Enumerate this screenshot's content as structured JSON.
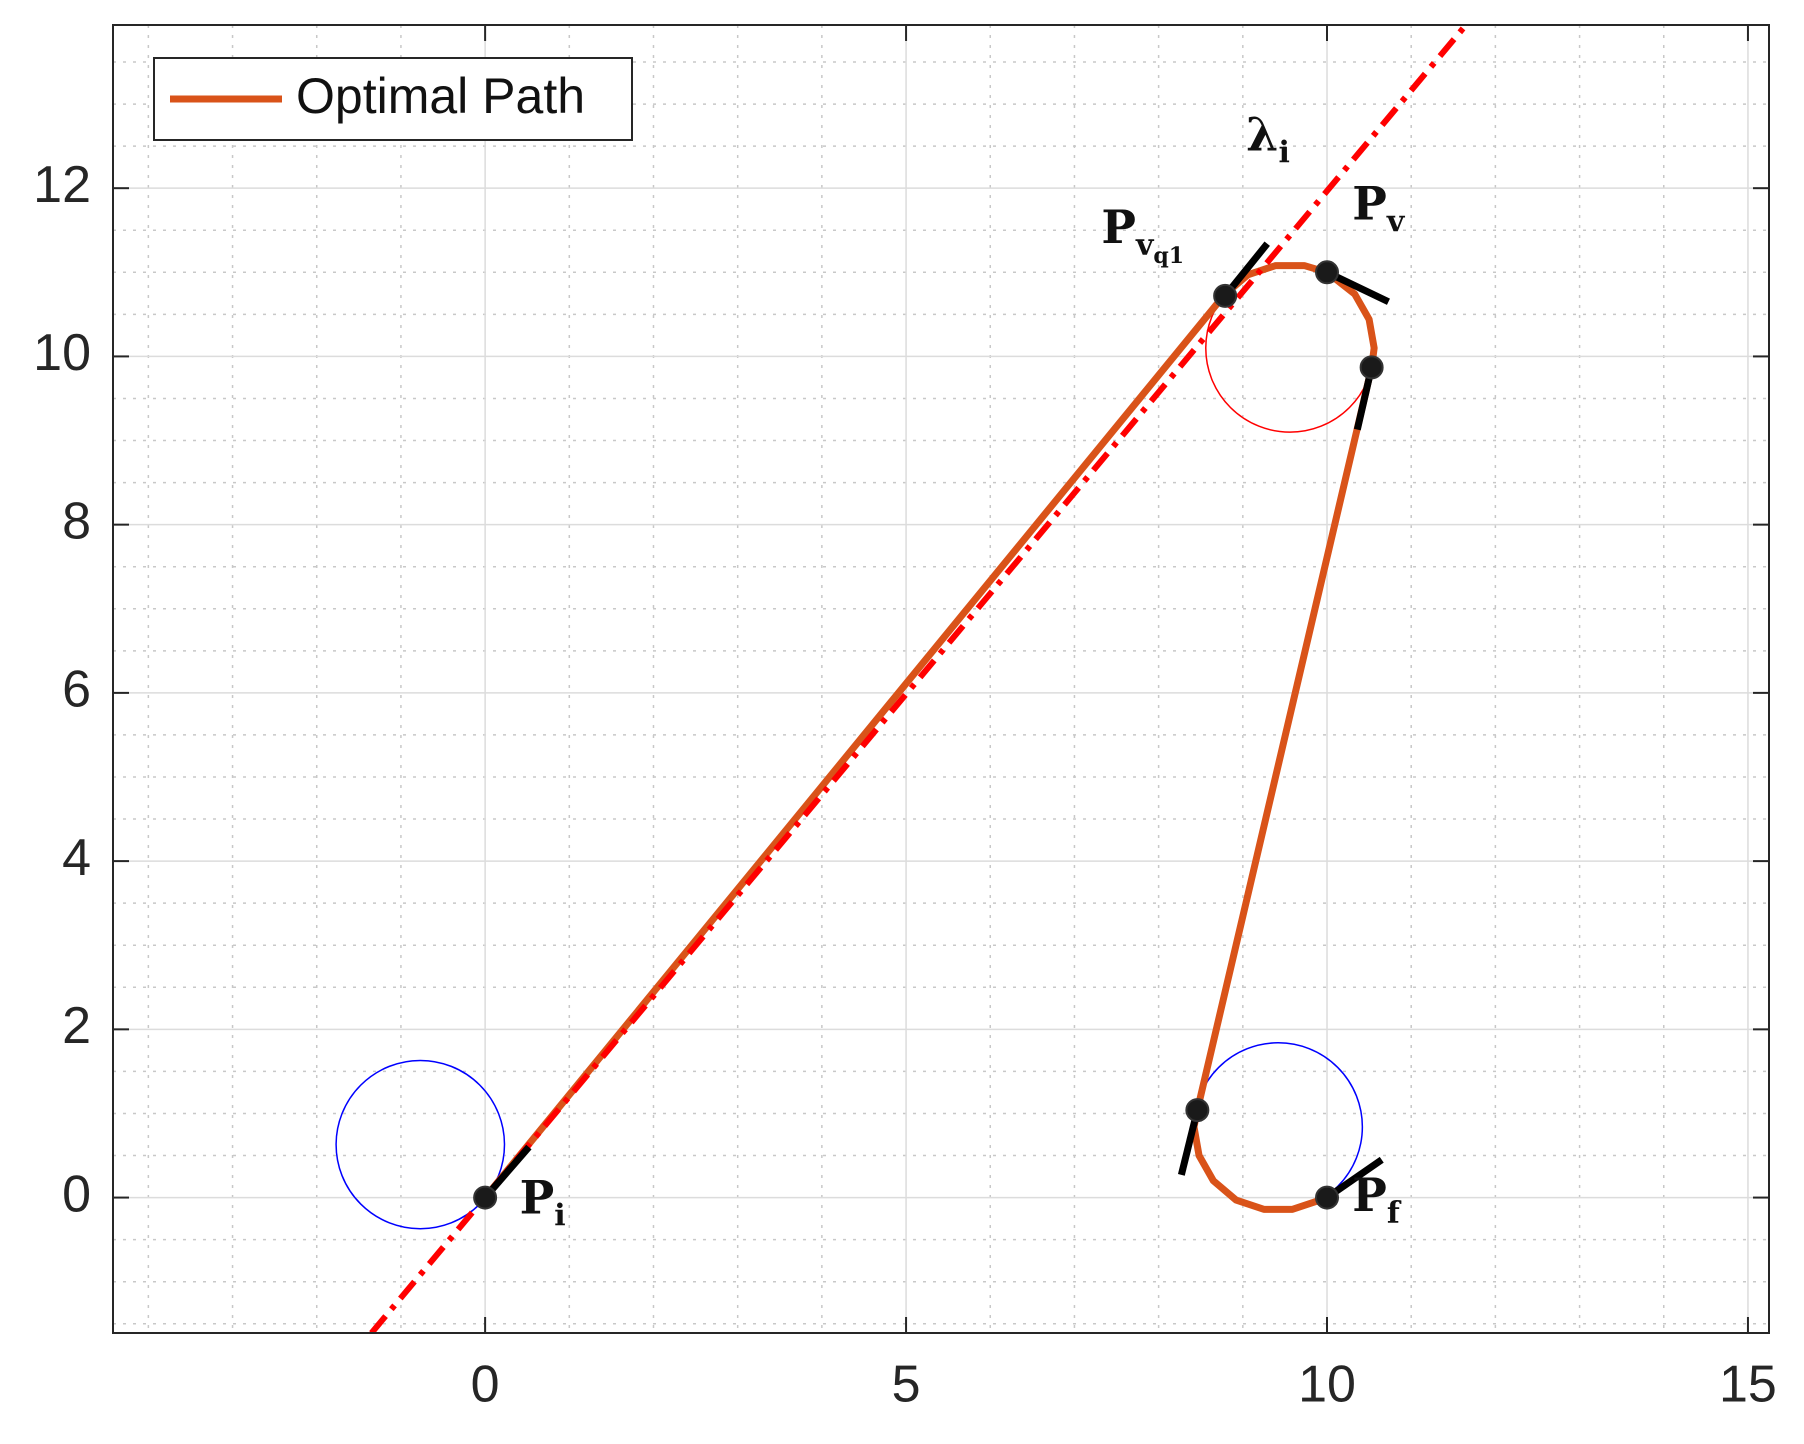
{
  "chart_data": {
    "type": "line",
    "xlim": [
      -4.42,
      15.25
    ],
    "ylim": [
      -1.61,
      13.94
    ],
    "xticks": [
      0,
      5,
      10,
      15
    ],
    "yticks": [
      0,
      2,
      4,
      6,
      8,
      10,
      12
    ],
    "xminorticks": [
      -4,
      -3,
      -2,
      -1,
      1,
      2,
      3,
      4,
      6,
      7,
      8,
      9,
      11,
      12,
      13,
      14
    ],
    "yminorticks": [
      -1.5,
      -1,
      -0.5,
      0.5,
      1,
      1.5,
      2.5,
      3,
      3.5,
      4.5,
      5,
      5.5,
      6.5,
      7,
      7.5,
      8.5,
      9,
      9.5,
      10.5,
      11,
      11.5,
      12.5,
      13,
      13.5
    ],
    "grid": true,
    "minor_grid": true,
    "legend": "upper left",
    "series": [
      {
        "name": "Optimal Path",
        "color": "#d95319",
        "x": [
          0,
          8.78,
          9.06,
          9.39,
          9.73,
          10.0,
          10.33,
          10.5,
          10.56,
          10.53,
          8.46,
          8.42,
          8.48,
          8.65,
          8.92,
          9.25,
          9.59,
          9.92,
          10.0
        ],
        "y": [
          0,
          10.73,
          10.97,
          11.08,
          11.08,
          11.0,
          10.74,
          10.44,
          10.1,
          9.87,
          1.04,
          0.84,
          0.5,
          0.2,
          -0.03,
          -0.14,
          -0.14,
          -0.03,
          0
        ]
      }
    ],
    "reference_line": {
      "color": "#ff0000",
      "x": [
        -1.35,
        11.65
      ],
      "y": [
        -1.61,
        13.94
      ]
    },
    "circles": [
      {
        "color": "#0000ff",
        "center_x": -0.77,
        "center_y": 0.63,
        "radius": 1.0
      },
      {
        "color": "#ff0000",
        "center_x": 9.56,
        "center_y": 10.1,
        "radius": 1.0
      },
      {
        "color": "#0000ff",
        "center_x": 9.42,
        "center_y": 0.84,
        "radius": 1.0
      }
    ],
    "markers": {
      "color": "#1a1a1a",
      "x": [
        0,
        8.79,
        10.0,
        10.53,
        8.46,
        10.0
      ],
      "y": [
        0,
        10.72,
        11.0,
        9.87,
        1.04,
        0
      ]
    },
    "heading_segments": [
      {
        "x": [
          0,
          0.52
        ],
        "y": [
          0,
          0.6
        ]
      },
      {
        "x": [
          8.79,
          9.29
        ],
        "y": [
          10.72,
          11.34
        ]
      },
      {
        "x": [
          10.0,
          10.73
        ],
        "y": [
          11.0,
          10.65
        ]
      },
      {
        "x": [
          10.53,
          10.36
        ],
        "y": [
          9.87,
          9.13
        ]
      },
      {
        "x": [
          8.46,
          8.27
        ],
        "y": [
          1.04,
          0.27
        ]
      },
      {
        "x": [
          10.0,
          10.65
        ],
        "y": [
          0,
          0.45
        ]
      }
    ],
    "annotations": [
      {
        "text": "λ",
        "sub": "i",
        "x": 9.04,
        "y": 12.45
      },
      {
        "text": "P",
        "sub": "v",
        "subsub": "q1",
        "x": 7.32,
        "y": 11.35
      },
      {
        "text": "P",
        "sub": "v",
        "x": 10.3,
        "y": 11.63
      },
      {
        "text": "P",
        "sub": "i",
        "x": 0.41,
        "y": -0.19
      },
      {
        "text": "P",
        "sub": "f",
        "x": 10.3,
        "y": -0.16
      }
    ]
  }
}
